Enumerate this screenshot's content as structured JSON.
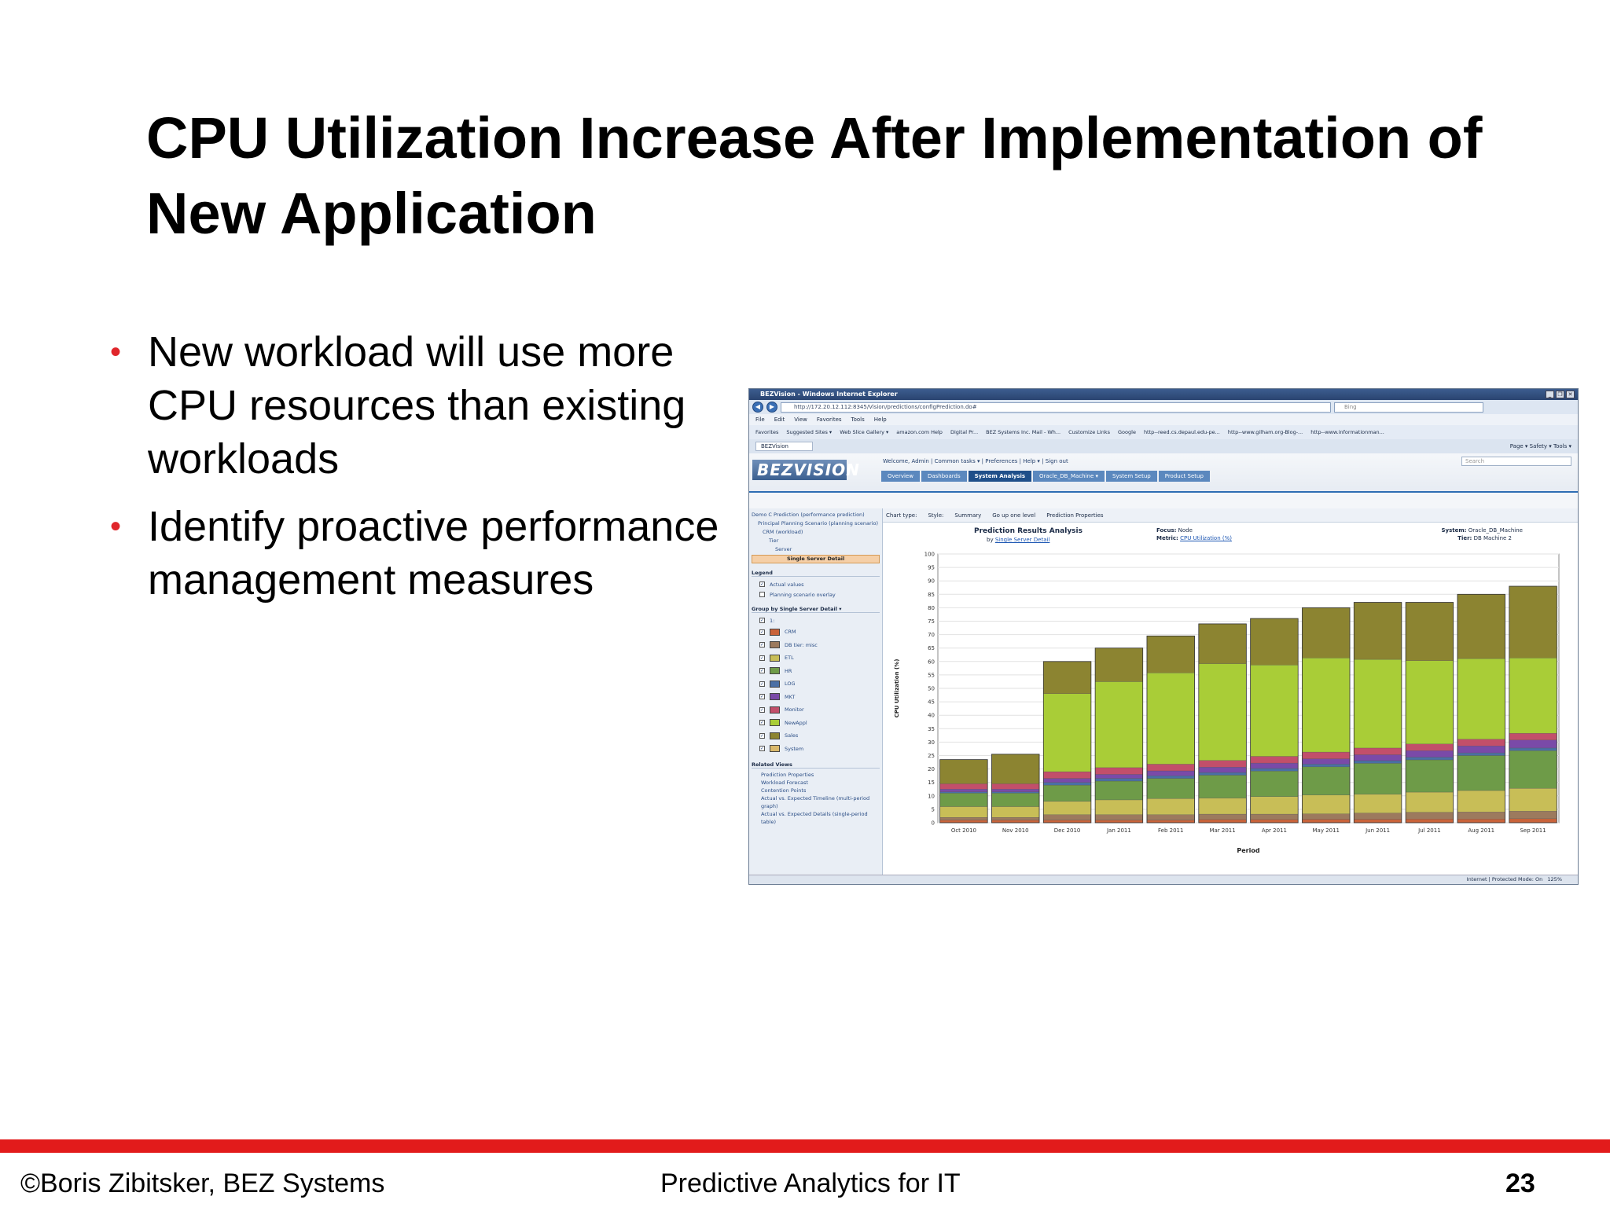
{
  "slide": {
    "title": "CPU Utilization Increase After Implementation of New Application",
    "bullets": [
      "New workload will use more CPU resources than existing workloads",
      "Identify proactive performance management measures"
    ],
    "footer_left": "©Boris Zibitsker, BEZ Systems",
    "footer_center": "Predictive Analytics for IT",
    "page_number": "23",
    "accent_color": "#e21b1b"
  },
  "browser": {
    "window_title": "BEZVision - Windows Internet Explorer",
    "address": "http://172.20.12.112:8345/Vision/predictions/configPrediction.do#",
    "search_placeholder": "Bing",
    "menu": [
      "File",
      "Edit",
      "View",
      "Favorites",
      "Tools",
      "Help"
    ],
    "favorites": [
      "Favorites",
      "Suggested Sites ▾",
      "Web Slice Gallery ▾",
      "amazon.com Help",
      "Digital Pr...",
      "BEZ Systems Inc. Mail - Wh...",
      "Customize Links",
      "Google",
      "http--reed.cs.depaul.edu-pe...",
      "http--www.gilham.org-Blog-...",
      "http--www.informationman..."
    ],
    "tab": "BEZVision",
    "tab_tools": "Page ▾  Safety ▾  Tools ▾",
    "status": "Internet | Protected Mode: On",
    "zoom": "125%"
  },
  "app": {
    "logo": "BEZVISION",
    "welcome": "Welcome, Admin  |  Common tasks ▾  |  Preferences  |  Help ▾  |  Sign out",
    "search_placeholder": "Search",
    "tabs": [
      "Overview",
      "Dashboards",
      "System Analysis",
      "Oracle_DB_Machine ▾",
      "System Setup",
      "Product Setup"
    ],
    "tree": [
      "Demo C Prediction (performance prediction)",
      "Principal Planning Scenario (planning scenario)",
      "CRM (workload)",
      "Tier",
      "Server",
      "Single Server Detail"
    ],
    "legend_header": "Legend",
    "legend": [
      "Actual values",
      "Planning scenario overlay"
    ],
    "group_header": "Group by Single Server Detail ▾",
    "group_all": "1:",
    "related_header": "Related Views",
    "related": [
      "Prediction Properties",
      "Workload Forecast",
      "Contention Points",
      "Actual vs. Expected Timeline (multi-period graph)",
      "Actual vs. Expected Details (single-period table)"
    ],
    "toolbar": [
      "Chart type:",
      "Style:",
      "Summary",
      "Go up one level",
      "Prediction Properties"
    ]
  },
  "chart_data": {
    "type": "bar",
    "stacked": true,
    "title": "Prediction Results Analysis",
    "by_label": "by",
    "by_value": "Single Server Detail",
    "focus_label": "Focus:",
    "focus_value": "Node",
    "metric_label": "Metric:",
    "metric_value": "CPU Utilization (%)",
    "system_label": "System:",
    "system_value": "Oracle_DB_Machine",
    "tier_label": "Tier:",
    "tier_value": "DB Machine 2",
    "xlabel": "Period",
    "ylabel": "CPU Utilization (%)",
    "ylim": [
      0,
      100
    ],
    "yticks": [
      0,
      5,
      10,
      15,
      20,
      25,
      30,
      35,
      40,
      45,
      50,
      55,
      60,
      65,
      70,
      75,
      80,
      85,
      90,
      95,
      100
    ],
    "grid": true,
    "legend_position": "left",
    "categories": [
      "Oct 2010",
      "Nov 2010",
      "Dec 2010",
      "Jan 2011",
      "Feb 2011",
      "Mar 2011",
      "Apr 2011",
      "May 2011",
      "Jun 2011",
      "Jul 2011",
      "Aug 2011",
      "Sep 2011"
    ],
    "series": [
      {
        "name": "CRM",
        "color": "#c9633a",
        "values": [
          1,
          1,
          1,
          1,
          1,
          1.2,
          1.2,
          1.3,
          1.3,
          1.4,
          1.4,
          1.5
        ]
      },
      {
        "name": "DB tier: misc",
        "color": "#9c7a5e",
        "values": [
          1,
          1,
          2,
          2,
          2,
          2,
          2,
          2,
          2.3,
          2.5,
          2.6,
          2.8
        ]
      },
      {
        "name": "ETL",
        "color": "#c8be57",
        "values": [
          4,
          4,
          5,
          5.5,
          6,
          6,
          6.5,
          7,
          7,
          7.5,
          8,
          8.5
        ]
      },
      {
        "name": "HR",
        "color": "#6e9b48",
        "values": [
          5,
          5,
          6,
          7,
          7.5,
          8.5,
          9.5,
          10.5,
          11.5,
          12,
          13,
          14
        ]
      },
      {
        "name": "LOG",
        "color": "#4a6fa5",
        "values": [
          0.5,
          0.5,
          1,
          1,
          1,
          1,
          1,
          1,
          1,
          1,
          1,
          1
        ]
      },
      {
        "name": "MKT",
        "color": "#7a4aa8",
        "values": [
          1,
          1,
          1.5,
          1.5,
          1.8,
          2,
          2,
          2,
          2.2,
          2.4,
          2.6,
          3
        ]
      },
      {
        "name": "Monitor",
        "color": "#c24f6a",
        "values": [
          2,
          2,
          2.5,
          2.5,
          2.5,
          2.5,
          2.5,
          2.5,
          2.5,
          2.5,
          2.5,
          2.5
        ]
      },
      {
        "name": "NewAppl",
        "color": "#a9cd37",
        "values": [
          0,
          0,
          29,
          32,
          34,
          36,
          34,
          35,
          33,
          31,
          30,
          28
        ]
      },
      {
        "name": "Sales",
        "color": "#8c8431",
        "values": [
          9,
          11,
          12,
          12.5,
          13.7,
          14.8,
          17.3,
          18.7,
          21.2,
          21.7,
          23.9,
          26.7
        ]
      },
      {
        "name": "System",
        "color": "#d9b86b",
        "values": [
          0,
          0,
          0,
          0,
          0,
          0,
          0,
          0,
          0,
          0,
          0,
          0
        ]
      }
    ]
  }
}
